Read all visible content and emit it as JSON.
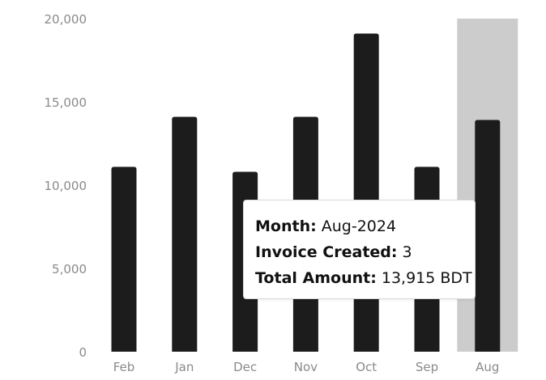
{
  "chart_data": {
    "type": "bar",
    "categories": [
      "Feb",
      "Jan",
      "Dec",
      "Nov",
      "Oct",
      "Sep",
      "Aug"
    ],
    "values": [
      11100,
      14100,
      10800,
      14100,
      19100,
      11100,
      13915
    ],
    "ylim": [
      0,
      20000
    ],
    "y_ticks": [
      "0",
      "5,000",
      "10,000",
      "15,000",
      "20,000"
    ],
    "grid": false,
    "highlighted_category": "Aug",
    "bar_color": "#1c1c1c",
    "highlight_color": "#cccccc",
    "tick_color": "#8a8a8a"
  },
  "tooltip": {
    "month_key": "Month:",
    "month_value": "Aug-2024",
    "invoice_key": "Invoice Created:",
    "invoice_value": "3",
    "amount_key": "Total Amount:",
    "amount_value": "13,915 BDT"
  }
}
